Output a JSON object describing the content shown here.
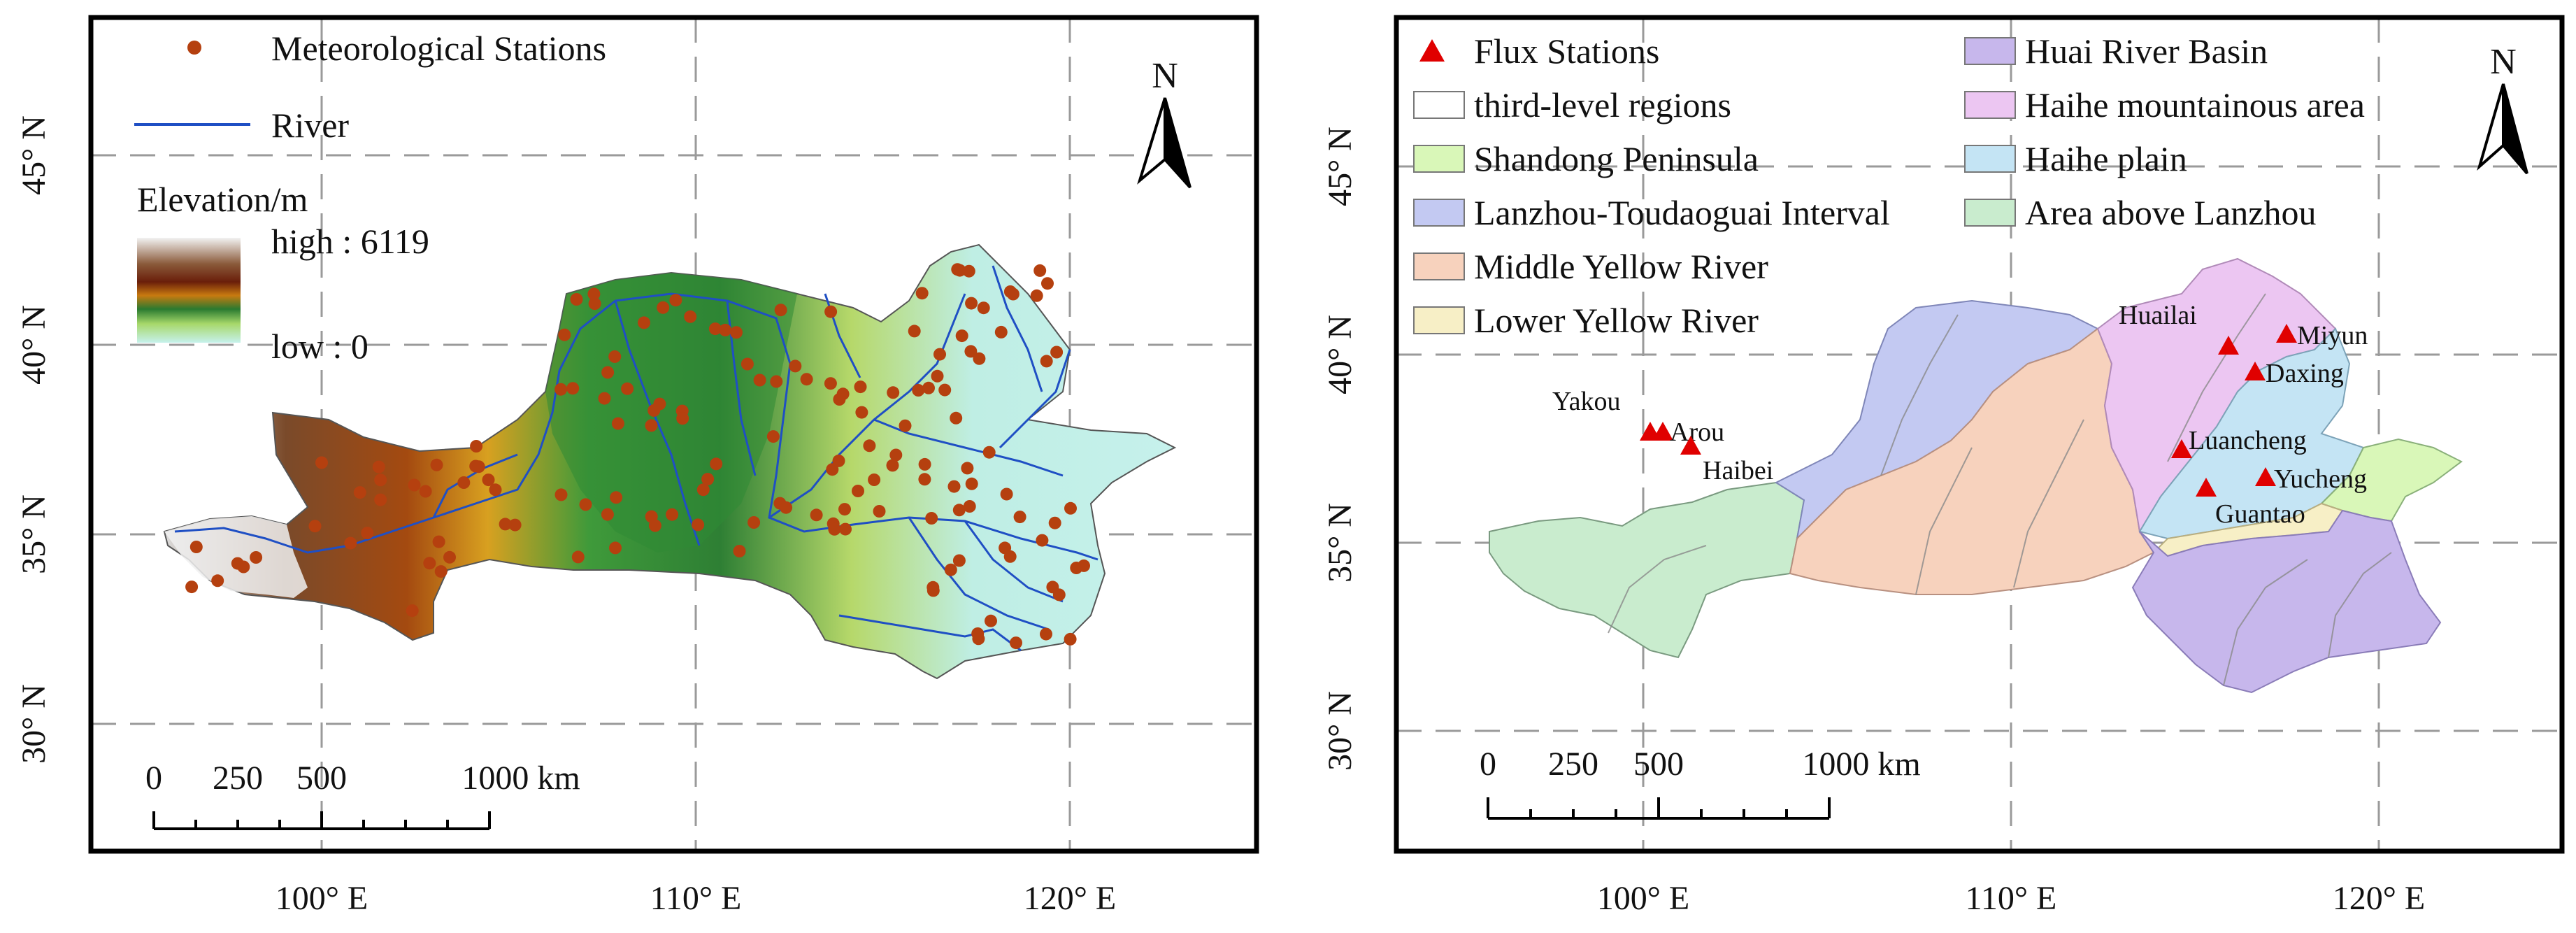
{
  "colors": {
    "station": "#b5400f",
    "river": "#1f4fc4",
    "flux": "#e00000",
    "grid": "#9a9a9a",
    "elev_high": "#f2f2f2",
    "elev_mid": "#2e8b3a",
    "elev_low": "#c6f1ec"
  },
  "left_map": {
    "legend": {
      "stations": "Meteorological Stations",
      "river": "River",
      "elevation_title": "Elevation/m",
      "high": "high : 6119",
      "low": "low : 0"
    },
    "north": "N",
    "scalebar": [
      "0",
      "250",
      "500",
      "1000 km"
    ],
    "lat_labels": [
      "45° N",
      "40° N",
      "35° N",
      "30° N"
    ],
    "lon_labels": [
      "100° E",
      "110° E",
      "120° E"
    ]
  },
  "right_map": {
    "legend": [
      {
        "label": "Flux Stations",
        "color": "#e00000",
        "icon": "triangle"
      },
      {
        "label": "third-level regions",
        "color": "#ffffff",
        "icon": "square"
      },
      {
        "label": "Shandong Peninsula",
        "color": "#d9f7b8",
        "icon": "square"
      },
      {
        "label": "Lanzhou-Toudaoguai Interval",
        "color": "#c3c9f2",
        "icon": "square"
      },
      {
        "label": "Middle Yellow River",
        "color": "#f7d2bd",
        "icon": "square"
      },
      {
        "label": "Lower Yellow River",
        "color": "#f7efc6",
        "icon": "square"
      },
      {
        "label": "Huai River Basin",
        "color": "#c7b7ec",
        "icon": "square"
      },
      {
        "label": "Haihe mountainous area",
        "color": "#ecc6f2",
        "icon": "square"
      },
      {
        "label": "Haihe plain",
        "color": "#c4e4f4",
        "icon": "square"
      },
      {
        "label": "Area above Lanzhou",
        "color": "#c9ecce",
        "icon": "square"
      }
    ],
    "stations": [
      "Yakou",
      "Arou",
      "Haibei",
      "Huailai",
      "Miyun",
      "Daxing",
      "Luancheng",
      "Yucheng",
      "Guantao"
    ],
    "north": "N",
    "scalebar": [
      "0",
      "250",
      "500",
      "1000 km"
    ],
    "lat_labels": [
      "45° N",
      "40° N",
      "35° N",
      "30° N"
    ],
    "lon_labels": [
      "100° E",
      "110° E",
      "120° E"
    ]
  }
}
